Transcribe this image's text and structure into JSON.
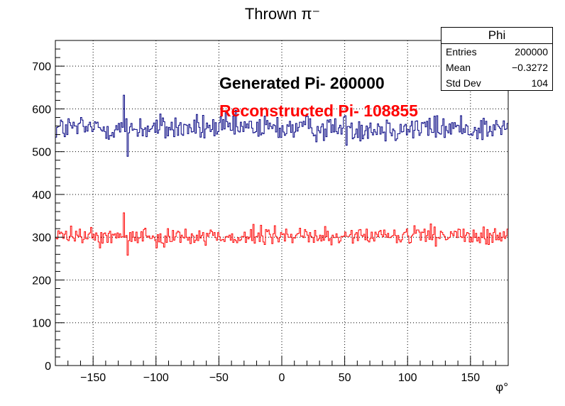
{
  "chart_data": {
    "type": "histogram",
    "title": "Thrown π⁻",
    "xlabel": "φ°",
    "ylabel": "",
    "xlim": [
      -180,
      180
    ],
    "ylim": [
      0,
      760
    ],
    "bins": 360,
    "x_ticks": [
      -150,
      -100,
      -50,
      0,
      50,
      100,
      150
    ],
    "y_ticks": [
      0,
      100,
      200,
      300,
      400,
      500,
      600,
      700
    ],
    "grid": true,
    "series": [
      {
        "name": "Generated Pi- 200000",
        "color": "#000080",
        "mean_level": 555,
        "spread": 22,
        "min": 489,
        "max": 632
      },
      {
        "name": "Reconstructed Pi- 108855",
        "color": "#ff0000",
        "mean_level": 302,
        "spread": 15,
        "min": 258,
        "max": 357
      }
    ],
    "annotations": [
      {
        "text": "Generated Pi- 200000",
        "color": "#000000"
      },
      {
        "text": "Reconstructed Pi- 108855",
        "color": "#ff0000"
      }
    ],
    "stats_box": {
      "title": "Phi",
      "rows": [
        {
          "label": "Entries",
          "value": "200000"
        },
        {
          "label": "Mean",
          "value": "−0.3272"
        },
        {
          "label": "Std Dev",
          "value": "104"
        }
      ]
    }
  }
}
